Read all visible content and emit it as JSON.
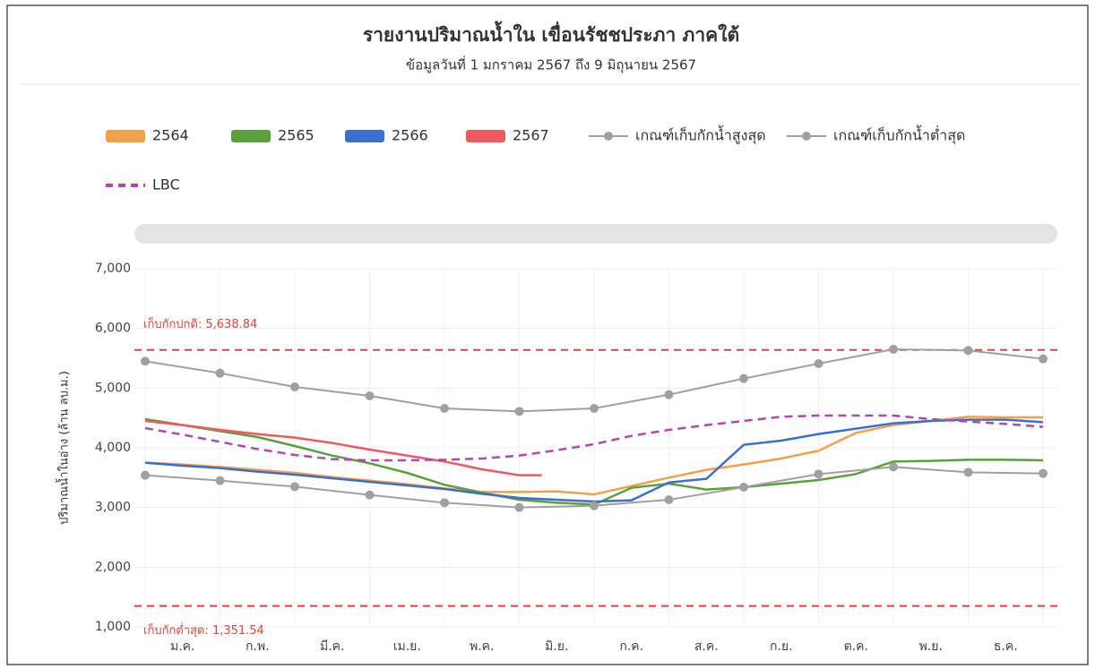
{
  "chart_data": {
    "type": "line",
    "title": "รายงานปริมาณน้ำใน เขื่อนรัชชประภา ภาคใต้",
    "subtitle": "ข้อมูลวันที่ 1 มกราคม 2567 ถึง 9 มิถุนายน 2567",
    "y_label": "ปริมาณน้ำในอ่าง (ล้าน ลบ.ม.)",
    "categories": [
      "ม.ค.",
      "ก.พ.",
      "มี.ค.",
      "เม.ย.",
      "พ.ค.",
      "มิ.ย.",
      "ก.ค.",
      "ส.ค.",
      "ก.ย.",
      "ต.ค.",
      "พ.ย.",
      "ธ.ค."
    ],
    "xlim": [
      0,
      12
    ],
    "ylim": [
      1000,
      7000
    ],
    "yticks": [
      {
        "value": 1000,
        "label": "1,000"
      },
      {
        "value": 2000,
        "label": "2,000"
      },
      {
        "value": 3000,
        "label": "3,000"
      },
      {
        "value": 4000,
        "label": "4,000"
      },
      {
        "value": 5000,
        "label": "5,000"
      },
      {
        "value": 6000,
        "label": "6,000"
      },
      {
        "value": 7000,
        "label": "7,000"
      }
    ],
    "grid": true,
    "series": [
      {
        "name": "2564",
        "color": "#f4a04a",
        "style": "band",
        "x": [
          0,
          0.5,
          1,
          1.5,
          2,
          2.5,
          3,
          3.5,
          4,
          4.5,
          5,
          5.5,
          6,
          6.5,
          7,
          7.5,
          8,
          8.5,
          9,
          9.5,
          10,
          10.5,
          11,
          11.5,
          12
        ],
        "values": [
          3750,
          3720,
          3680,
          3630,
          3580,
          3510,
          3450,
          3390,
          3320,
          3260,
          3260,
          3270,
          3220,
          3360,
          3500,
          3630,
          3720,
          3820,
          3950,
          4250,
          4380,
          4450,
          4520,
          4510,
          4510
        ]
      },
      {
        "name": "2565",
        "color": "#5aa03c",
        "style": "band",
        "x": [
          0,
          0.5,
          1,
          1.5,
          2,
          2.5,
          3,
          3.5,
          4,
          4.5,
          5,
          5.5,
          6,
          6.5,
          7,
          7.5,
          8,
          8.5,
          9,
          9.5,
          10,
          10.5,
          11,
          11.5,
          12
        ],
        "values": [
          4480,
          4380,
          4280,
          4180,
          4030,
          3870,
          3740,
          3580,
          3380,
          3250,
          3130,
          3080,
          3050,
          3330,
          3400,
          3300,
          3340,
          3400,
          3460,
          3560,
          3770,
          3780,
          3800,
          3800,
          3790
        ]
      },
      {
        "name": "2566",
        "color": "#3a6fd0",
        "style": "band",
        "x": [
          0,
          0.5,
          1,
          1.5,
          2,
          2.5,
          3,
          3.5,
          4,
          4.5,
          5,
          5.5,
          6,
          6.5,
          7,
          7.5,
          8,
          8.5,
          9,
          9.5,
          10,
          10.5,
          11,
          11.5,
          12
        ],
        "values": [
          3750,
          3700,
          3660,
          3600,
          3550,
          3490,
          3430,
          3370,
          3310,
          3230,
          3160,
          3130,
          3100,
          3120,
          3420,
          3480,
          4050,
          4120,
          4230,
          4320,
          4410,
          4450,
          4470,
          4470,
          4430
        ]
      },
      {
        "name": "2567",
        "color": "#ee5a5f",
        "style": "band",
        "x": [
          0,
          0.5,
          1,
          1.5,
          2,
          2.5,
          3,
          3.5,
          4,
          4.5,
          5,
          5.3
        ],
        "values": [
          4450,
          4380,
          4300,
          4230,
          4170,
          4080,
          3970,
          3870,
          3770,
          3640,
          3540,
          3540
        ]
      },
      {
        "name": "เกณฑ์เก็บกักน้ำสูงสุด",
        "color": "#a0a0a0",
        "style": "marker",
        "x": [
          0,
          1,
          2,
          3,
          4,
          5,
          6,
          7,
          8,
          9,
          10,
          11,
          12
        ],
        "values": [
          5450,
          5250,
          5020,
          4870,
          4660,
          4610,
          4660,
          4890,
          5160,
          5410,
          5650,
          5630,
          5490
        ]
      },
      {
        "name": "เกณฑ์เก็บกักน้ำต่ำสุด",
        "color": "#a0a0a0",
        "style": "marker",
        "x": [
          0,
          1,
          2,
          3,
          4,
          5,
          6,
          7,
          8,
          9,
          10,
          11,
          12
        ],
        "values": [
          3540,
          3450,
          3350,
          3210,
          3080,
          3000,
          3030,
          3130,
          3340,
          3560,
          3680,
          3590,
          3570
        ]
      },
      {
        "name": "LBC",
        "color": "#b04aa8",
        "style": "dashed",
        "x": [
          0,
          0.5,
          1,
          1.5,
          2,
          2.5,
          3,
          3.5,
          4,
          4.5,
          5,
          5.5,
          6,
          6.5,
          7,
          7.5,
          8,
          8.5,
          9,
          9.5,
          10,
          10.5,
          11,
          11.5,
          12
        ],
        "values": [
          4330,
          4220,
          4100,
          3980,
          3880,
          3810,
          3790,
          3790,
          3800,
          3820,
          3870,
          3960,
          4060,
          4200,
          4300,
          4380,
          4450,
          4520,
          4540,
          4540,
          4540,
          4480,
          4440,
          4400,
          4350
        ]
      }
    ],
    "reference_lines": [
      {
        "value": 5638.84,
        "label": "เก็บกักปกติ: 5,638.84",
        "color": "#e0453a"
      },
      {
        "value": 1351.54,
        "label": "เก็บกักต่ำสุด: 1,351.54",
        "color": "#e0453a"
      }
    ]
  }
}
